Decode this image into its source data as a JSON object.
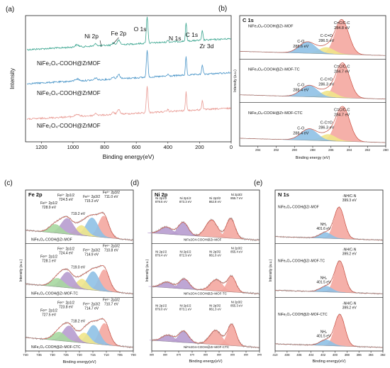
{
  "chart_data": [
    {
      "id": "a",
      "panel_label": "(a)",
      "type": "line",
      "title": "",
      "xlabel": "Binding energy(eV)",
      "ylabel": "Intensity",
      "xlim": [
        1300,
        0
      ],
      "xticks": [
        1200,
        1000,
        800,
        600,
        400,
        200,
        0
      ],
      "annotations": [
        {
          "text": "O 1s",
          "x": 531
        },
        {
          "text": "Fe 2p",
          "x": 711
        },
        {
          "text": "Ni 2p",
          "x": 856
        },
        {
          "text": "N 1s",
          "x": 400
        },
        {
          "text": "C 1s",
          "x": 285
        },
        {
          "text": "Zr 3d",
          "x": 182
        }
      ],
      "series": [
        {
          "name": "NiFe₂O₄-COOH@ZrMOF",
          "color": "#3aa58f"
        },
        {
          "name": "NiFe₂O₄-COOH@ZrMOF",
          "color": "#4a95c8"
        },
        {
          "name": "NiFe₂O₄-COOH@ZrMOF",
          "color": "#e99a93"
        }
      ]
    },
    {
      "id": "b",
      "panel_label": "(b)",
      "type": "area",
      "title": "C 1s",
      "xlabel": "Binding energy (eV)",
      "ylabel": "Intensity (a.u.)",
      "xlim": [
        296,
        280
      ],
      "xticks": [
        294,
        292,
        290,
        288,
        286,
        284,
        282,
        280
      ],
      "subpanels": [
        {
          "name": "NiFe₂O₄-COOH@Zr-MOF",
          "peaks": [
            {
              "label": "C=C/C-C",
              "value": "284.8 eV",
              "center": 284.8,
              "color": "#f4a7a0"
            },
            {
              "label": "C-C=O",
              "value": "286.5 eV",
              "center": 286.5,
              "color": "#f1e58a"
            },
            {
              "label": "C-O",
              "value": "288.6 eV",
              "center": 288.6,
              "color": "#8fc1e6"
            }
          ]
        },
        {
          "name": "NiFe₂O₄-COOH@Zr-MOF-TC",
          "peaks": [
            {
              "label": "C=C/C-C",
              "value": "284.7 eV",
              "center": 284.7,
              "color": "#f4a7a0"
            },
            {
              "label": "C-C=O",
              "value": "286.3 eV",
              "center": 286.3,
              "color": "#f1e58a"
            },
            {
              "label": "C-O",
              "value": "288.4 eV",
              "center": 288.4,
              "color": "#8fc1e6"
            }
          ]
        },
        {
          "name": "NiFe₂O₄-COOH@Zr-MOF-CTC",
          "peaks": [
            {
              "label": "C=C/C-C",
              "value": "284.7 eV",
              "center": 284.7,
              "color": "#f4a7a0"
            },
            {
              "label": "C-C=O",
              "value": "286.3 eV",
              "center": 286.3,
              "color": "#f1e58a"
            },
            {
              "label": "C-O",
              "value": "288.4 eV",
              "center": 288.4,
              "color": "#8fc1e6"
            }
          ]
        }
      ]
    },
    {
      "id": "c",
      "panel_label": "(c)",
      "type": "area",
      "title": "Fe 2p",
      "xlabel": "Binding energy(eV)",
      "ylabel": "Intensity (a.u.)",
      "xlim": [
        740,
        700
      ],
      "xticks": [
        740,
        735,
        730,
        725,
        720,
        715,
        710,
        705,
        700
      ],
      "subpanels": [
        {
          "name": "NiFe₂O₄-COOH@Zr-MOF",
          "peaks": [
            {
              "label": "Fe³⁺ 2p3/2",
              "value": "711.0 eV",
              "center": 711.0,
              "color": "#f4a7a0"
            },
            {
              "label": "Fe³⁺ 2p3/2",
              "value": "715.3 eV",
              "center": 715.3,
              "color": "#8fc1e6"
            },
            {
              "label": "",
              "value": "719.2 eV",
              "center": 719.2,
              "color": "#f1e58a"
            },
            {
              "label": "Fe²⁺ 2p1/2",
              "value": "724.5 eV",
              "center": 724.5,
              "color": "#b79ccf"
            },
            {
              "label": "Fe³⁺ 2p1/2",
              "value": "728.9 eV",
              "center": 728.9,
              "color": "#a7d8a0"
            }
          ]
        },
        {
          "name": "NiFe₂O₄-COOH@Zr-MOF-TC",
          "peaks": [
            {
              "label": "Fe³⁺ 2p3/2",
              "value": "710.8 eV",
              "center": 710.8,
              "color": "#f4a7a0"
            },
            {
              "label": "Fe³⁺ 2p3/2",
              "value": "714.9 eV",
              "center": 714.9,
              "color": "#8fc1e6"
            },
            {
              "label": "",
              "value": "719.0 eV",
              "center": 719.0,
              "color": "#f1e58a"
            },
            {
              "label": "Fe²⁺ 2p1/2",
              "value": "724.4 eV",
              "center": 724.4,
              "color": "#b79ccf"
            },
            {
              "label": "Fe³⁺ 2p1/2",
              "value": "728.1 eV",
              "center": 728.1,
              "color": "#a7d8a0"
            }
          ]
        },
        {
          "name": "NiFe₂O₄-COOH@Zr-MOF-CTC",
          "peaks": [
            {
              "label": "Fe³⁺ 2p3/2",
              "value": "710.7 eV",
              "center": 710.7,
              "color": "#f4a7a0"
            },
            {
              "label": "Fe³⁺ 2p3/2",
              "value": "714.7 eV",
              "center": 714.7,
              "color": "#8fc1e6"
            },
            {
              "label": "",
              "value": "718.2 eV",
              "center": 718.2,
              "color": "#f1e58a"
            },
            {
              "label": "Fe²⁺ 2p1/2",
              "value": "723.8 eV",
              "center": 723.8,
              "color": "#b79ccf"
            },
            {
              "label": "Fe³⁺ 2p1/2",
              "value": "727.5 eV",
              "center": 727.5,
              "color": "#a7d8a0"
            }
          ]
        }
      ]
    },
    {
      "id": "d",
      "panel_label": "(d)",
      "type": "area",
      "title": "Ni 2p",
      "xlabel": "Binding energy(eV)",
      "ylabel": "Intensity (a.u.)",
      "xlim": [
        885,
        845
      ],
      "xticks": [
        885,
        880,
        875,
        870,
        865,
        860,
        855,
        850,
        845
      ],
      "subpanels": [
        {
          "name": "NiFe2O4-COOH@Zr-MOF",
          "peaks": [
            {
              "label": "Ni 2p3/2",
              "value": "855.7 eV",
              "center": 855.7,
              "color": "#f4a7a0"
            },
            {
              "label": "Ni 2p3/2",
              "value": "862.8 eV",
              "center": 862.8,
              "color": "#f4a7a0"
            },
            {
              "label": "Ni 2p1/2",
              "value": "873.3 eV",
              "center": 873.3,
              "color": "#b79ccf"
            },
            {
              "label": "Ni 2p1/2",
              "value": "879.6 eV",
              "center": 879.6,
              "color": "#b79ccf"
            }
          ]
        },
        {
          "name": "NiFe2O4-COOH@Zr-MOF-TC",
          "peaks": [
            {
              "label": "Ni 2p3/2",
              "value": "855.4 eV",
              "center": 855.4,
              "color": "#f4a7a0"
            },
            {
              "label": "Ni 2p3/2",
              "value": "861.0 eV",
              "center": 861.0,
              "color": "#f4a7a0"
            },
            {
              "label": "Ni 2p1/2",
              "value": "872.9 eV",
              "center": 872.9,
              "color": "#b79ccf"
            },
            {
              "label": "Ni 2p1/2",
              "value": "879.4 eV",
              "center": 879.4,
              "color": "#b79ccf"
            }
          ]
        },
        {
          "name": "NiFe2O4-COOH@Zr-MOF-CTC",
          "peaks": [
            {
              "label": "Ni 2p3/2",
              "value": "855.3 eV",
              "center": 855.3,
              "color": "#f4a7a0"
            },
            {
              "label": "Ni 2p3/2",
              "value": "861.3 eV",
              "center": 861.3,
              "color": "#f4a7a0"
            },
            {
              "label": "Ni 2p1/2",
              "value": "873.1 eV",
              "center": 873.1,
              "color": "#b79ccf"
            },
            {
              "label": "Ni 2p1/2",
              "value": "879.0 eV",
              "center": 879.0,
              "color": "#b79ccf"
            }
          ]
        }
      ]
    },
    {
      "id": "e",
      "panel_label": "(e)",
      "type": "area",
      "title": "N 1s",
      "xlabel": "Binding energy(eV)",
      "ylabel": "Intensity (a.u.)",
      "xlim": [
        410,
        392
      ],
      "xticks": [
        410,
        408,
        406,
        404,
        402,
        400,
        398,
        396,
        394,
        392
      ],
      "subpanels": [
        {
          "name": "NiFe₂O₄-COOH@Zr-MOF",
          "peaks": [
            {
              "label": "-NH/C-N",
              "value": "399.3 eV",
              "center": 399.3,
              "color": "#f4a7a0"
            },
            {
              "label": "NH₂",
              "value": "401.6 eV",
              "center": 401.6,
              "color": "#8fc1e6"
            }
          ]
        },
        {
          "name": "NiFe₂O₄-COOH@Zr-MOF-TC",
          "peaks": [
            {
              "label": "-NH/C-N",
              "value": "399.2 eV",
              "center": 399.2,
              "color": "#f4a7a0"
            },
            {
              "label": "NH₂",
              "value": "401.5 eV",
              "center": 401.5,
              "color": "#8fc1e6"
            }
          ]
        },
        {
          "name": "NiFe₂O₄-COOH@Zr-MOF-CTC",
          "peaks": [
            {
              "label": "-NH/C-N",
              "value": "399.2 eV",
              "center": 399.2,
              "color": "#f4a7a0"
            },
            {
              "label": "NH₂",
              "value": "401.5 eV",
              "center": 401.5,
              "color": "#8fc1e6"
            }
          ]
        }
      ]
    }
  ]
}
